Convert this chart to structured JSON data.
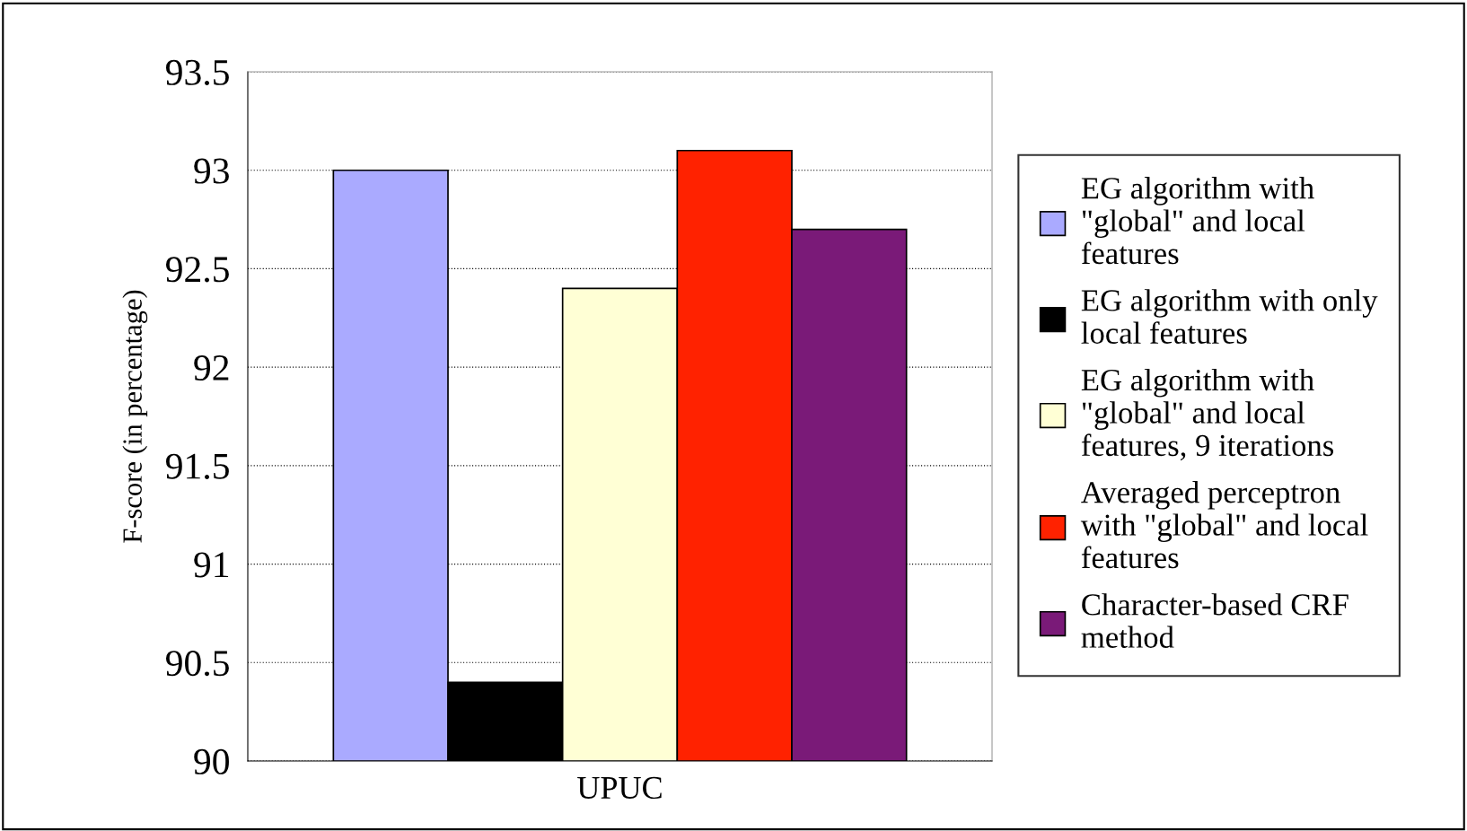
{
  "chart_data": {
    "type": "bar",
    "ylabel": "F-score (in percentage)",
    "categories": [
      "UPUC"
    ],
    "series": [
      {
        "name": "EG algorithm with\n\"global\" and local\nfeatures",
        "color": "#aaaaff",
        "values": [
          93.0
        ]
      },
      {
        "name": "EG algorithm with only\nlocal features",
        "color": "#000000",
        "values": [
          90.4
        ]
      },
      {
        "name": "EG algorithm with\n\"global\" and local\nfeatures, 9 iterations",
        "color": "#ffffd5",
        "values": [
          92.4
        ]
      },
      {
        "name": "Averaged perceptron\nwith \"global\" and local\nfeatures",
        "color": "#ff2200",
        "values": [
          93.1
        ]
      },
      {
        "name": "Character-based CRF\nmethod",
        "color": "#7a1a78",
        "values": [
          92.7
        ]
      }
    ],
    "ylim": [
      90,
      93.5
    ],
    "yticks": [
      90,
      90.5,
      91,
      91.5,
      92,
      92.5,
      93,
      93.5
    ],
    "grid": "y",
    "legend": "right"
  }
}
